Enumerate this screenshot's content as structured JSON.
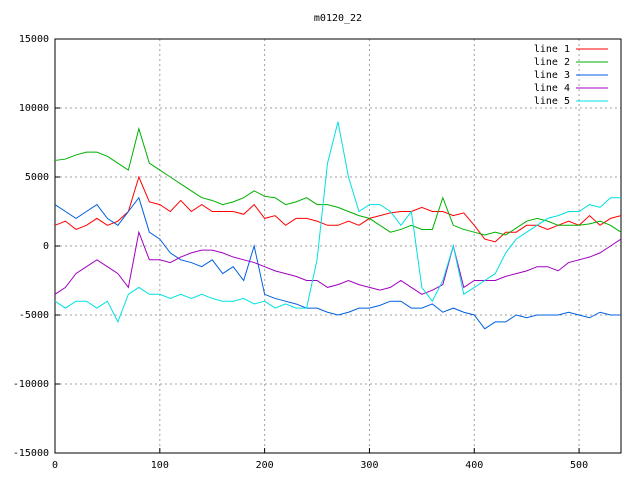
{
  "chart_data": {
    "type": "line",
    "title": "m0120_22",
    "x": [
      0,
      10,
      20,
      30,
      40,
      50,
      60,
      70,
      80,
      90,
      100,
      110,
      120,
      130,
      140,
      150,
      160,
      170,
      180,
      190,
      200,
      210,
      220,
      230,
      240,
      250,
      260,
      270,
      280,
      290,
      300,
      310,
      320,
      330,
      340,
      350,
      360,
      370,
      380,
      390,
      400,
      410,
      420,
      430,
      440,
      450,
      460,
      470,
      480,
      490,
      500,
      510,
      520,
      530,
      540
    ],
    "series": [
      {
        "name": "line 1",
        "color": "#ff0000",
        "values": [
          1500,
          1800,
          1200,
          1500,
          2000,
          1500,
          1800,
          2500,
          5000,
          3200,
          3000,
          2500,
          3300,
          2500,
          3000,
          2500,
          2500,
          2500,
          2300,
          3000,
          2000,
          2200,
          1500,
          2000,
          2000,
          1800,
          1500,
          1500,
          1800,
          1500,
          2000,
          2200,
          2400,
          2500,
          2500,
          2800,
          2500,
          2500,
          2200,
          2400,
          1500,
          500,
          300,
          1000,
          1000,
          1500,
          1500,
          1200,
          1500,
          1800,
          1500,
          2200,
          1500,
          2000,
          2200
        ]
      },
      {
        "name": "line 2",
        "color": "#00b000",
        "values": [
          6200,
          6300,
          6600,
          6800,
          6800,
          6500,
          6000,
          5500,
          8500,
          6000,
          5500,
          5000,
          4500,
          4000,
          3500,
          3300,
          3000,
          3200,
          3500,
          4000,
          3600,
          3500,
          3000,
          3200,
          3500,
          3000,
          3000,
          2800,
          2500,
          2200,
          2000,
          1500,
          1000,
          1200,
          1500,
          1200,
          1200,
          3500,
          1500,
          1200,
          1000,
          800,
          1000,
          800,
          1300,
          1800,
          2000,
          1800,
          1500,
          1500,
          1500,
          1600,
          1800,
          1500,
          1000
        ]
      },
      {
        "name": "line 3",
        "color": "#0060e0",
        "values": [
          3000,
          2500,
          2000,
          2500,
          3000,
          2000,
          1500,
          2500,
          3500,
          1000,
          500,
          -500,
          -1000,
          -1200,
          -1500,
          -1000,
          -2000,
          -1500,
          -2500,
          0,
          -3500,
          -3800,
          -4000,
          -4200,
          -4500,
          -4500,
          -4800,
          -5000,
          -4800,
          -4500,
          -4500,
          -4300,
          -4000,
          -4000,
          -4500,
          -4500,
          -4200,
          -4800,
          -4500,
          -4800,
          -5000,
          -6000,
          -5500,
          -5500,
          -5000,
          -5200,
          -5000,
          -5000,
          -5000,
          -4800,
          -5000,
          -5200,
          -4800,
          -5000,
          -5000
        ]
      },
      {
        "name": "line 4",
        "color": "#a000c0",
        "values": [
          -3500,
          -3000,
          -2000,
          -1500,
          -1000,
          -1500,
          -2000,
          -3000,
          1000,
          -1000,
          -1000,
          -1200,
          -800,
          -500,
          -300,
          -300,
          -500,
          -800,
          -1000,
          -1200,
          -1500,
          -1800,
          -2000,
          -2200,
          -2500,
          -2500,
          -3000,
          -2800,
          -2500,
          -2800,
          -3000,
          -3200,
          -3000,
          -2500,
          -3000,
          -3500,
          -3200,
          -2800,
          0,
          -3000,
          -2500,
          -2500,
          -2500,
          -2200,
          -2000,
          -1800,
          -1500,
          -1500,
          -1800,
          -1200,
          -1000,
          -800,
          -500,
          0,
          500
        ]
      },
      {
        "name": "line 5",
        "color": "#00e0e0",
        "values": [
          -4000,
          -4500,
          -4000,
          -4000,
          -4500,
          -4000,
          -5500,
          -3500,
          -3000,
          -3500,
          -3500,
          -3800,
          -3500,
          -3800,
          -3500,
          -3800,
          -4000,
          -4000,
          -3800,
          -4200,
          -4000,
          -4500,
          -4200,
          -4500,
          -4500,
          -1000,
          6000,
          9000,
          5000,
          2500,
          3000,
          3000,
          2500,
          1500,
          2500,
          -3000,
          -4000,
          -2500,
          0,
          -3500,
          -3000,
          -2500,
          -2000,
          -500,
          500,
          1000,
          1500,
          2000,
          2200,
          2500,
          2500,
          3000,
          2800,
          3500,
          3500
        ]
      }
    ],
    "xlim": [
      0,
      540
    ],
    "ylim": [
      -15000,
      15000
    ],
    "xticks": [
      0,
      100,
      200,
      300,
      400,
      500
    ],
    "yticks": [
      -15000,
      -10000,
      -5000,
      0,
      5000,
      10000,
      15000
    ],
    "grid": true,
    "legend": "top-right"
  }
}
